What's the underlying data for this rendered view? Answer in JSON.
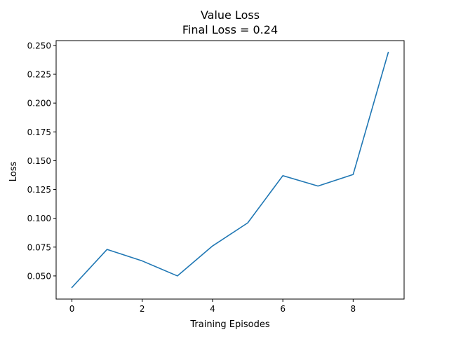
{
  "chart_data": {
    "type": "line",
    "title": "Value Loss",
    "subtitle": "Final Loss = 0.24",
    "xlabel": "Training Episodes",
    "ylabel": "Loss",
    "x": [
      0,
      1,
      2,
      3,
      4,
      5,
      6,
      7,
      8,
      9
    ],
    "series": [
      {
        "values": [
          0.04,
          0.073,
          0.063,
          0.05,
          0.076,
          0.096,
          0.137,
          0.128,
          0.138,
          0.244
        ]
      }
    ],
    "xlim": [
      -0.45,
      9.45
    ],
    "ylim": [
      0.0299,
      0.2542
    ],
    "xticks": [
      0,
      2,
      4,
      6,
      8
    ],
    "xtick_labels": [
      "0",
      "2",
      "4",
      "6",
      "8"
    ],
    "yticks": [
      0.05,
      0.075,
      0.1,
      0.125,
      0.15,
      0.175,
      0.2,
      0.225,
      0.25
    ],
    "ytick_labels": [
      "0.050",
      "0.075",
      "0.100",
      "0.125",
      "0.150",
      "0.175",
      "0.200",
      "0.225",
      "0.250"
    ],
    "grid": false,
    "legend": "none",
    "line_color": "#1f77b4"
  }
}
